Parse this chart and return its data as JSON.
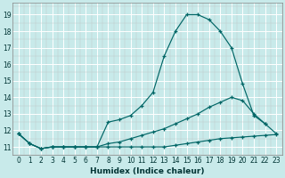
{
  "xlabel": "Humidex (Indice chaleur)",
  "ylabel": "",
  "bg_color": "#c8eaea",
  "grid_color": "#b0d4d4",
  "line_color": "#006666",
  "xlim": [
    -0.5,
    23.5
  ],
  "ylim": [
    10.6,
    19.7
  ],
  "yticks": [
    11,
    12,
    13,
    14,
    15,
    16,
    17,
    18,
    19
  ],
  "xticks": [
    0,
    1,
    2,
    3,
    4,
    5,
    6,
    7,
    8,
    9,
    10,
    11,
    12,
    13,
    14,
    15,
    16,
    17,
    18,
    19,
    20,
    21,
    22,
    23
  ],
  "series1_x": [
    0,
    1,
    2,
    3,
    4,
    5,
    6,
    7,
    8,
    9,
    10,
    11,
    12,
    13,
    14,
    15,
    16,
    17,
    18,
    19,
    20,
    21,
    22
  ],
  "series1_y": [
    11.8,
    11.2,
    10.9,
    11.0,
    11.0,
    11.0,
    11.0,
    11.0,
    12.5,
    12.65,
    12.9,
    13.5,
    14.3,
    16.5,
    18.0,
    19.0,
    19.0,
    18.7,
    18.0,
    17.0,
    14.8,
    12.9,
    12.4
  ],
  "series2_x": [
    0,
    1,
    2,
    3,
    4,
    5,
    6,
    7,
    8,
    9,
    10,
    11,
    12,
    13,
    14,
    15,
    16,
    17,
    18,
    19,
    20,
    21,
    22,
    23
  ],
  "series2_y": [
    11.8,
    11.2,
    10.9,
    11.0,
    11.0,
    11.0,
    11.0,
    11.0,
    11.2,
    11.3,
    11.5,
    11.7,
    11.9,
    12.1,
    12.4,
    12.7,
    13.0,
    13.4,
    13.7,
    14.0,
    13.8,
    13.0,
    12.4,
    11.8
  ],
  "series3_x": [
    0,
    1,
    2,
    3,
    4,
    5,
    6,
    7,
    8,
    9,
    10,
    11,
    12,
    13,
    14,
    15,
    16,
    17,
    18,
    19,
    20,
    21,
    22,
    23
  ],
  "series3_y": [
    11.8,
    11.2,
    10.9,
    11.0,
    11.0,
    11.0,
    11.0,
    11.0,
    11.0,
    11.0,
    11.0,
    11.0,
    11.0,
    11.0,
    11.1,
    11.2,
    11.3,
    11.4,
    11.5,
    11.55,
    11.6,
    11.65,
    11.7,
    11.75
  ]
}
